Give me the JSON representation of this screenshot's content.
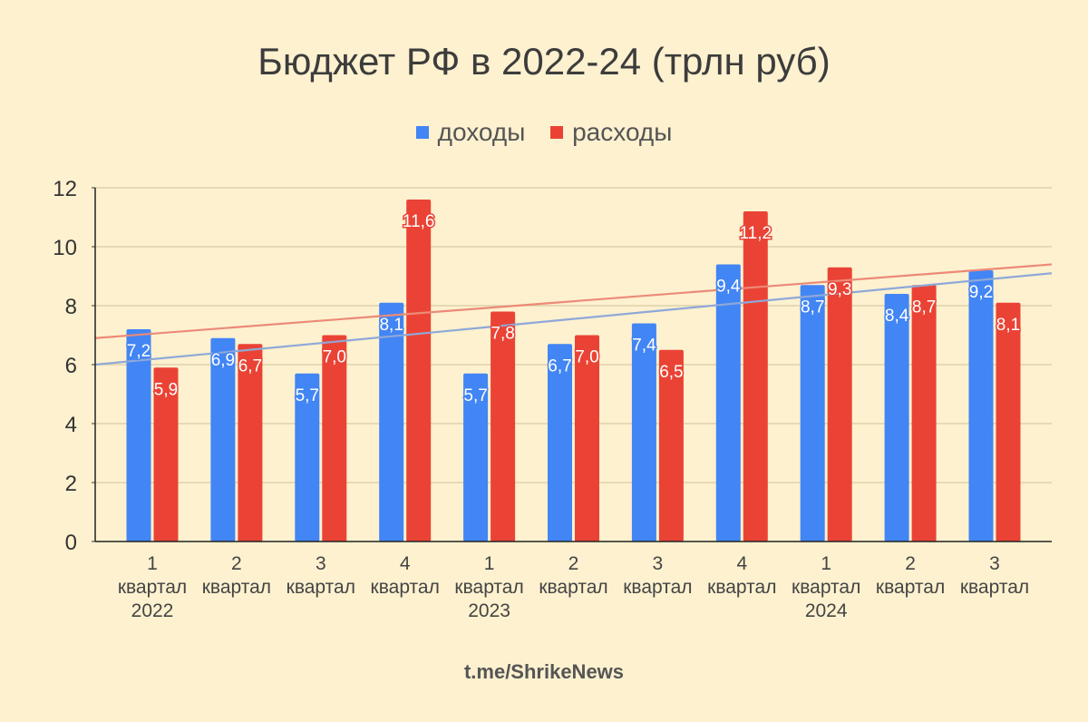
{
  "chart_data": {
    "type": "bar",
    "title": "Бюджет РФ в 2022-24 (трлн руб)",
    "xlabel": "",
    "ylabel": "",
    "ylim": [
      0,
      12
    ],
    "yticks": [
      0,
      2,
      4,
      6,
      8,
      10,
      12
    ],
    "grid": true,
    "legend_position": "top",
    "categories": [
      [
        "1",
        "квартал",
        "2022"
      ],
      [
        "2",
        "квартал",
        ""
      ],
      [
        "3",
        "квартал",
        ""
      ],
      [
        "4",
        "квартал",
        ""
      ],
      [
        "1",
        "квартал",
        "2023"
      ],
      [
        "2",
        "квартал",
        ""
      ],
      [
        "3",
        "квартал",
        ""
      ],
      [
        "4",
        "квартал",
        ""
      ],
      [
        "1",
        "квартал",
        "2024"
      ],
      [
        "2",
        "квартал",
        ""
      ],
      [
        "3",
        "квартал",
        ""
      ]
    ],
    "series": [
      {
        "name": "доходы",
        "color": "#4285f4",
        "values": [
          7.2,
          6.9,
          5.7,
          8.1,
          5.7,
          6.7,
          7.4,
          9.4,
          8.7,
          8.4,
          9.2
        ],
        "labels": [
          "7,2",
          "6,9",
          "5,7",
          "8,1",
          "5,7",
          "6,7",
          "7,4",
          "9,4",
          "8,7",
          "8,4",
          "9,2"
        ],
        "trendline": {
          "color": "#8fa8d8",
          "start": 6.0,
          "end": 9.1
        }
      },
      {
        "name": "расходы",
        "color": "#ea4335",
        "values": [
          5.9,
          6.7,
          7.0,
          11.6,
          7.8,
          7.0,
          6.5,
          11.2,
          9.3,
          8.7,
          8.1
        ],
        "labels": [
          "5,9",
          "6,7",
          "7,0",
          "11,6",
          "7,8",
          "7,0",
          "6,5",
          "11,2",
          "9,3",
          "8,7",
          "8,1"
        ],
        "trendline": {
          "color": "#ec8a78",
          "start": 6.9,
          "end": 9.4
        }
      }
    ]
  },
  "header": {
    "title": "Бюджет РФ в 2022-24 (трлн руб)",
    "legend": [
      {
        "label": "доходы",
        "color": "#4285f4"
      },
      {
        "label": "расходы",
        "color": "#ea4335"
      }
    ]
  },
  "footer": {
    "text": "t.me/ShrikeNews"
  }
}
